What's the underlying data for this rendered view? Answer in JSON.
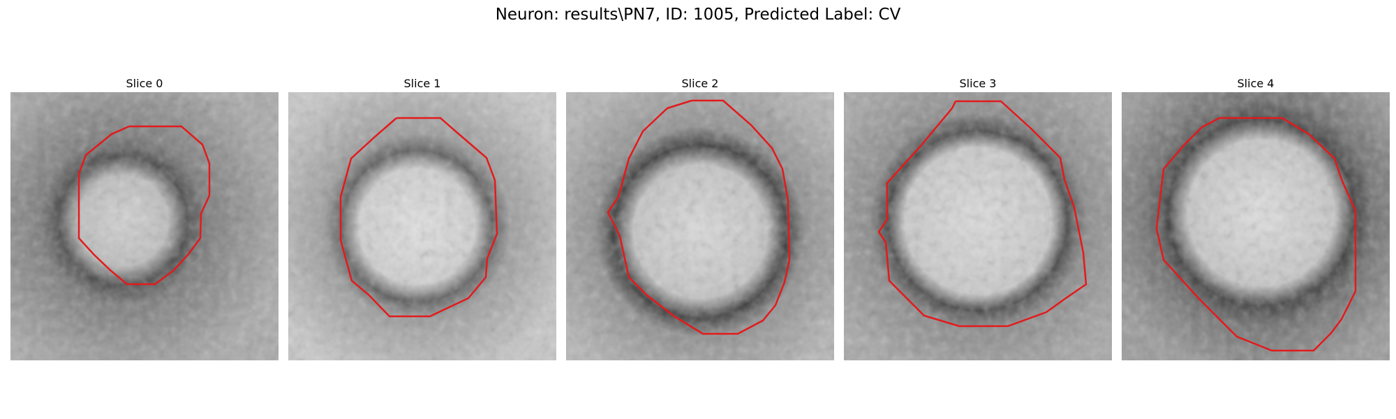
{
  "figure": {
    "suptitle": "Neuron: results\\PN7, ID: 1005, Predicted Label: CV"
  },
  "panels": [
    {
      "title": "Slice 0"
    },
    {
      "title": "Slice 1"
    },
    {
      "title": "Slice 2"
    },
    {
      "title": "Slice 3"
    },
    {
      "title": "Slice 4"
    }
  ],
  "colors": {
    "contour": "#e31a1c",
    "background": "#ffffff"
  }
}
